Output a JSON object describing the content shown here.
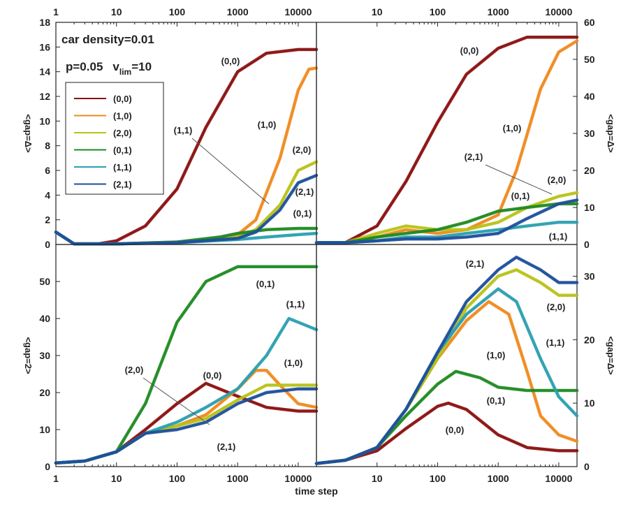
{
  "figure": {
    "note_density": "car density=0.01",
    "note_p": "p=0.05",
    "note_v": "v",
    "note_v_sub": "lim",
    "note_v_val": "=10",
    "x_title": "time step"
  },
  "colors": {
    "(0,0)": "#8b1010",
    "(1,0)": "#f08a1e",
    "(2,0)": "#b8c218",
    "(0,1)": "#1f8a22",
    "(1,1)": "#2aa0b0",
    "(2,1)": "#1e4f9a"
  },
  "legend": [
    "(0,0)",
    "(1,0)",
    "(2,0)",
    "(0,1)",
    "(1,1)",
    "(2,1)"
  ],
  "chart_data": [
    {
      "type": "line",
      "panel": "top-left",
      "ylabel": "<gap=Δ>",
      "xscale": "log",
      "xlim": [
        1,
        20000
      ],
      "ylim": [
        0,
        18
      ],
      "yticks": [
        0,
        2,
        4,
        6,
        8,
        10,
        12,
        14,
        16,
        18
      ],
      "xticks": [
        1,
        10,
        100,
        1000,
        10000
      ],
      "series": [
        {
          "name": "(0,0)",
          "x": [
            1,
            2,
            5,
            10,
            30,
            100,
            300,
            1000,
            3000,
            10000,
            20000
          ],
          "y": [
            1.0,
            0.05,
            0.05,
            0.3,
            1.5,
            4.5,
            9.5,
            14.0,
            15.5,
            15.8,
            15.8
          ]
        },
        {
          "name": "(1,0)",
          "x": [
            1,
            2,
            10,
            100,
            500,
            1000,
            2000,
            5000,
            10000,
            15000,
            20000
          ],
          "y": [
            1.0,
            0.05,
            0.05,
            0.2,
            0.4,
            0.8,
            2.0,
            7.0,
            12.5,
            14.2,
            14.3
          ]
        },
        {
          "name": "(2,0)",
          "x": [
            1,
            2,
            10,
            100,
            1000,
            2000,
            5000,
            10000,
            20000
          ],
          "y": [
            1.0,
            0.05,
            0.05,
            0.15,
            0.6,
            1.2,
            3.2,
            6.0,
            6.7
          ]
        },
        {
          "name": "(0,1)",
          "x": [
            1,
            2,
            10,
            100,
            500,
            1000,
            3000,
            10000,
            20000
          ],
          "y": [
            1.0,
            0.05,
            0.05,
            0.2,
            0.6,
            0.9,
            1.2,
            1.3,
            1.3
          ]
        },
        {
          "name": "(1,1)",
          "x": [
            1,
            2,
            10,
            100,
            1000,
            3000,
            10000,
            20000
          ],
          "y": [
            1.0,
            0.05,
            0.05,
            0.15,
            0.4,
            0.6,
            0.8,
            0.9
          ]
        },
        {
          "name": "(2,1)",
          "x": [
            1,
            2,
            10,
            100,
            1000,
            2000,
            5000,
            10000,
            20000
          ],
          "y": [
            1.0,
            0.05,
            0.05,
            0.15,
            0.5,
            1.0,
            2.8,
            5.0,
            5.6
          ]
        }
      ],
      "annotations": [
        "(0,0)",
        "(1,0)",
        "(2,0)",
        "(2,1)",
        "(0,1)",
        "(1,1)"
      ]
    },
    {
      "type": "line",
      "panel": "top-right",
      "ylabel": "<gap=Δ>",
      "xscale": "log",
      "xlim": [
        1,
        20000
      ],
      "ylim": [
        0,
        60
      ],
      "yticks": [
        0,
        10,
        20,
        30,
        40,
        50,
        60
      ],
      "xticks": [
        10,
        100,
        1000,
        10000
      ],
      "series": [
        {
          "name": "(0,0)",
          "x": [
            1,
            3,
            10,
            30,
            100,
            300,
            1000,
            3000,
            10000,
            20000
          ],
          "y": [
            0.5,
            0.5,
            5,
            17,
            33,
            46,
            53,
            56,
            56,
            56
          ]
        },
        {
          "name": "(1,0)",
          "x": [
            1,
            3,
            10,
            30,
            100,
            300,
            1000,
            2000,
            5000,
            10000,
            20000
          ],
          "y": [
            0.5,
            0.5,
            2,
            4,
            3,
            4,
            8,
            20,
            42,
            52,
            55
          ]
        },
        {
          "name": "(2,0)",
          "x": [
            1,
            3,
            10,
            30,
            100,
            300,
            1000,
            3000,
            10000,
            20000
          ],
          "y": [
            0.5,
            0.5,
            3,
            5,
            4,
            4,
            6,
            10,
            13,
            14
          ]
        },
        {
          "name": "(0,1)",
          "x": [
            1,
            3,
            10,
            30,
            100,
            300,
            1000,
            3000,
            10000,
            20000
          ],
          "y": [
            0.5,
            0.5,
            2,
            3,
            4,
            6,
            9,
            10,
            11,
            11
          ]
        },
        {
          "name": "(1,1)",
          "x": [
            1,
            3,
            10,
            30,
            100,
            300,
            1000,
            3000,
            10000,
            20000
          ],
          "y": [
            0.5,
            0.5,
            1,
            2,
            2,
            3,
            4,
            5,
            6,
            6
          ]
        },
        {
          "name": "(2,1)",
          "x": [
            1,
            3,
            10,
            30,
            100,
            300,
            1000,
            3000,
            10000,
            20000
          ],
          "y": [
            0.5,
            0.5,
            1,
            1.5,
            1.5,
            2,
            3,
            7,
            11,
            12
          ]
        }
      ],
      "annotations": [
        "(0,0)",
        "(1,0)",
        "(2,1)",
        "(0,1)",
        "(2,0)",
        "(1,1)"
      ]
    },
    {
      "type": "line",
      "panel": "bottom-left",
      "ylabel": "<gap=2>",
      "xscale": "log",
      "xlim": [
        1,
        20000
      ],
      "ylim": [
        0,
        60
      ],
      "yticks": [
        0,
        10,
        20,
        30,
        40,
        50
      ],
      "xticks": [
        1,
        10,
        100,
        1000,
        10000
      ],
      "series": [
        {
          "name": "(0,0)",
          "x": [
            1,
            3,
            10,
            30,
            100,
            300,
            1000,
            3000,
            10000,
            20000
          ],
          "y": [
            1,
            1.5,
            4,
            10,
            17,
            22.5,
            19,
            16,
            15,
            15
          ]
        },
        {
          "name": "(1,0)",
          "x": [
            1,
            3,
            10,
            30,
            100,
            300,
            1000,
            2000,
            3000,
            5000,
            10000,
            20000
          ],
          "y": [
            1,
            1.5,
            4,
            9,
            11,
            14,
            21,
            26,
            26,
            22,
            17,
            16
          ]
        },
        {
          "name": "(2,0)",
          "x": [
            1,
            3,
            10,
            30,
            100,
            300,
            1000,
            3000,
            10000,
            20000
          ],
          "y": [
            1,
            1.5,
            4,
            9,
            11,
            13,
            18,
            22,
            22,
            22
          ]
        },
        {
          "name": "(0,1)",
          "x": [
            1,
            3,
            10,
            30,
            100,
            300,
            1000,
            3000,
            10000,
            20000
          ],
          "y": [
            1,
            1.5,
            4,
            17,
            39,
            50,
            54,
            54,
            54,
            54
          ]
        },
        {
          "name": "(1,1)",
          "x": [
            1,
            3,
            10,
            30,
            100,
            300,
            1000,
            3000,
            7000,
            10000,
            20000
          ],
          "y": [
            1,
            1.5,
            4,
            9,
            12,
            16,
            21,
            30,
            40,
            39,
            37
          ]
        },
        {
          "name": "(2,1)",
          "x": [
            1,
            3,
            10,
            30,
            100,
            300,
            1000,
            3000,
            10000,
            20000
          ],
          "y": [
            1,
            1.5,
            4,
            9,
            10,
            12,
            17,
            20,
            21,
            21
          ]
        }
      ],
      "annotations": [
        "(0,1)",
        "(1,1)",
        "(0,0)",
        "(1,0)",
        "(2,0)",
        "(2,1)"
      ]
    },
    {
      "type": "line",
      "panel": "bottom-right",
      "ylabel": "<gap=Δ>",
      "xscale": "log",
      "xlim": [
        1,
        20000
      ],
      "ylim": [
        0,
        35
      ],
      "yticks": [
        0,
        10,
        20,
        30
      ],
      "xticks": [
        10,
        100,
        1000,
        10000
      ],
      "series": [
        {
          "name": "(0,0)",
          "x": [
            1,
            3,
            10,
            30,
            100,
            150,
            300,
            1000,
            3000,
            10000,
            20000
          ],
          "y": [
            0.5,
            1,
            2.5,
            6,
            9.5,
            10,
            9,
            5,
            3,
            2.5,
            2.5
          ]
        },
        {
          "name": "(1,0)",
          "x": [
            1,
            3,
            10,
            30,
            100,
            300,
            700,
            1500,
            3000,
            5000,
            10000,
            20000
          ],
          "y": [
            0.5,
            1,
            3,
            9,
            17,
            23,
            26,
            24,
            15,
            8,
            5,
            4
          ]
        },
        {
          "name": "(2,0)",
          "x": [
            1,
            3,
            10,
            30,
            100,
            300,
            1000,
            2000,
            5000,
            10000,
            20000
          ],
          "y": [
            0.5,
            1,
            3,
            9,
            17,
            25,
            30,
            31,
            29,
            27,
            27
          ]
        },
        {
          "name": "(0,1)",
          "x": [
            1,
            3,
            10,
            30,
            100,
            200,
            500,
            1000,
            3000,
            10000,
            20000
          ],
          "y": [
            0.5,
            1,
            3,
            8,
            13,
            15,
            14,
            12.5,
            12,
            12,
            12
          ]
        },
        {
          "name": "(1,1)",
          "x": [
            1,
            3,
            10,
            30,
            100,
            300,
            1000,
            2000,
            5000,
            10000,
            20000
          ],
          "y": [
            0.5,
            1,
            3,
            9,
            18,
            24,
            28,
            26,
            17,
            11,
            8
          ]
        },
        {
          "name": "(2,1)",
          "x": [
            1,
            3,
            10,
            30,
            100,
            300,
            1000,
            2000,
            5000,
            10000,
            20000
          ],
          "y": [
            0.5,
            1,
            3,
            9,
            18,
            26,
            31,
            33,
            31,
            29,
            29
          ]
        }
      ],
      "annotations": [
        "(2,1)",
        "(2,0)",
        "(1,0)",
        "(1,1)",
        "(0,1)",
        "(0,0)"
      ]
    }
  ]
}
